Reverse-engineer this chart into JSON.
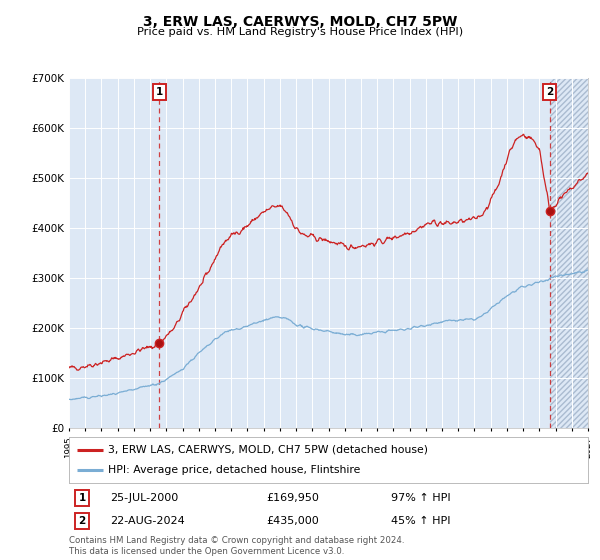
{
  "title": "3, ERW LAS, CAERWYS, MOLD, CH7 5PW",
  "subtitle": "Price paid vs. HM Land Registry's House Price Index (HPI)",
  "legend_line1": "3, ERW LAS, CAERWYS, MOLD, CH7 5PW (detached house)",
  "legend_line2": "HPI: Average price, detached house, Flintshire",
  "table_row1_label": "1",
  "table_row1_date": "25-JUL-2000",
  "table_row1_price": "£169,950",
  "table_row1_hpi": "97% ↑ HPI",
  "table_row2_label": "2",
  "table_row2_date": "22-AUG-2024",
  "table_row2_price": "£435,000",
  "table_row2_hpi": "45% ↑ HPI",
  "footer": "Contains HM Land Registry data © Crown copyright and database right 2024.\nThis data is licensed under the Open Government Licence v3.0.",
  "hpi_color": "#7aadd4",
  "price_color": "#cc2222",
  "bg_color": "#dde8f5",
  "hatch_bg_color": "#ccdaeb",
  "grid_color": "#ffffff",
  "point1_year": 2000.56,
  "point1_value": 169950,
  "point2_year": 2024.64,
  "point2_value": 435000,
  "vline1_year": 2000.56,
  "vline2_year": 2024.64,
  "xmin": 1995.0,
  "xmax": 2027.0,
  "ymin": 0,
  "ymax": 700000,
  "yticks": [
    0,
    100000,
    200000,
    300000,
    400000,
    500000,
    600000,
    700000
  ],
  "ytick_labels": [
    "£0",
    "£100K",
    "£200K",
    "£300K",
    "£400K",
    "£500K",
    "£600K",
    "£700K"
  ],
  "red_key_years": [
    1995.0,
    1995.5,
    1996.0,
    1996.5,
    1997.0,
    1997.5,
    1998.0,
    1998.5,
    1999.0,
    1999.5,
    2000.0,
    2000.56,
    2001.0,
    2001.5,
    2002.0,
    2002.5,
    2003.0,
    2003.5,
    2004.0,
    2004.5,
    2005.0,
    2005.5,
    2006.0,
    2006.5,
    2007.0,
    2007.5,
    2008.0,
    2008.5,
    2009.0,
    2009.5,
    2010.0,
    2010.5,
    2011.0,
    2011.5,
    2012.0,
    2012.5,
    2013.0,
    2013.5,
    2014.0,
    2014.5,
    2015.0,
    2015.5,
    2016.0,
    2016.5,
    2017.0,
    2017.5,
    2018.0,
    2018.5,
    2019.0,
    2019.5,
    2020.0,
    2020.5,
    2021.0,
    2021.5,
    2022.0,
    2022.5,
    2023.0,
    2023.5,
    2024.0,
    2024.64,
    2025.0,
    2025.5,
    2026.0,
    2026.5,
    2027.0
  ],
  "red_key_vals": [
    120000,
    122000,
    125000,
    128000,
    132000,
    136000,
    140000,
    146000,
    152000,
    158000,
    162000,
    169950,
    185000,
    200000,
    230000,
    255000,
    280000,
    305000,
    340000,
    370000,
    385000,
    395000,
    405000,
    420000,
    432000,
    440000,
    445000,
    430000,
    400000,
    385000,
    383000,
    378000,
    375000,
    370000,
    362000,
    363000,
    366000,
    368000,
    372000,
    376000,
    382000,
    387000,
    393000,
    400000,
    408000,
    412000,
    410000,
    410000,
    413000,
    415000,
    418000,
    430000,
    455000,
    490000,
    540000,
    575000,
    588000,
    580000,
    560000,
    435000,
    450000,
    465000,
    480000,
    495000,
    510000
  ],
  "blue_key_years": [
    1995.0,
    1995.5,
    1996.0,
    1996.5,
    1997.0,
    1997.5,
    1998.0,
    1998.5,
    1999.0,
    1999.5,
    2000.0,
    2000.56,
    2001.0,
    2001.5,
    2002.0,
    2002.5,
    2003.0,
    2003.5,
    2004.0,
    2004.5,
    2005.0,
    2005.5,
    2006.0,
    2006.5,
    2007.0,
    2007.5,
    2008.0,
    2008.5,
    2009.0,
    2009.5,
    2010.0,
    2010.5,
    2011.0,
    2011.5,
    2012.0,
    2012.5,
    2013.0,
    2013.5,
    2014.0,
    2014.5,
    2015.0,
    2015.5,
    2016.0,
    2016.5,
    2017.0,
    2017.5,
    2018.0,
    2018.5,
    2019.0,
    2019.5,
    2020.0,
    2020.5,
    2021.0,
    2021.5,
    2022.0,
    2022.5,
    2023.0,
    2023.5,
    2024.0,
    2024.64,
    2025.0,
    2025.5,
    2026.0,
    2026.5,
    2027.0
  ],
  "blue_key_vals": [
    58000,
    59000,
    61000,
    63000,
    65000,
    67000,
    70000,
    73000,
    77000,
    82000,
    86000,
    90000,
    98000,
    107000,
    120000,
    135000,
    150000,
    163000,
    177000,
    190000,
    196000,
    200000,
    205000,
    210000,
    216000,
    220000,
    222000,
    218000,
    208000,
    202000,
    200000,
    197000,
    194000,
    191000,
    187000,
    187000,
    188000,
    190000,
    192000,
    194000,
    196000,
    197000,
    200000,
    203000,
    207000,
    210000,
    213000,
    215000,
    216000,
    217000,
    218000,
    225000,
    238000,
    252000,
    265000,
    275000,
    282000,
    288000,
    292000,
    300000,
    304000,
    307000,
    310000,
    313000,
    316000
  ]
}
